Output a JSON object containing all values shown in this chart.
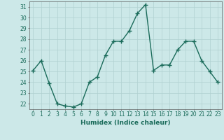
{
  "x": [
    0,
    1,
    2,
    3,
    4,
    5,
    6,
    7,
    8,
    9,
    10,
    11,
    12,
    13,
    14,
    15,
    16,
    17,
    18,
    19,
    20,
    21,
    22,
    23
  ],
  "y": [
    25.1,
    26.0,
    23.9,
    22.0,
    21.8,
    21.7,
    22.0,
    24.0,
    24.5,
    26.5,
    27.8,
    27.8,
    28.8,
    30.4,
    31.2,
    25.1,
    25.6,
    25.6,
    27.0,
    27.8,
    27.8,
    26.0,
    25.0,
    24.0
  ],
  "line_color": "#1a6b5a",
  "marker": "+",
  "marker_size": 4,
  "bg_color": "#cce8e8",
  "grid_color": "#b0d0d0",
  "axis_color": "#606060",
  "xlabel": "Humidex (Indice chaleur)",
  "ylim": [
    21.5,
    31.5
  ],
  "xlim": [
    -0.5,
    23.5
  ],
  "yticks": [
    22,
    23,
    24,
    25,
    26,
    27,
    28,
    29,
    30,
    31
  ],
  "xticks": [
    0,
    1,
    2,
    3,
    4,
    5,
    6,
    7,
    8,
    9,
    10,
    11,
    12,
    13,
    14,
    15,
    16,
    17,
    18,
    19,
    20,
    21,
    22,
    23
  ],
  "tick_label_color": "#1a6b5a",
  "tick_label_fontsize": 5.5,
  "xlabel_fontsize": 6.5,
  "line_width": 1.0
}
